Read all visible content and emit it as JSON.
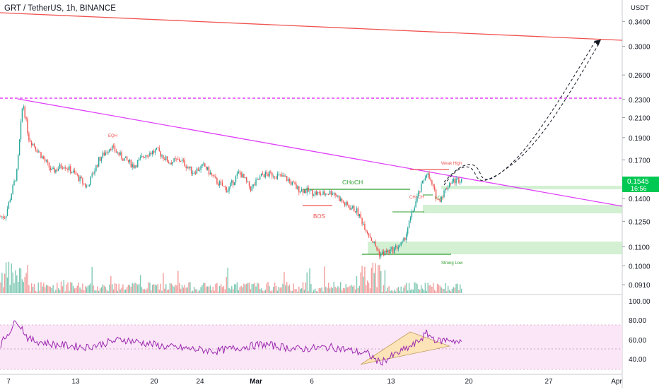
{
  "header": {
    "title": "GRT / TetherUS, 1h, BINANCE"
  },
  "colors": {
    "up": "#26a69a",
    "down": "#ef5350",
    "resistance": "#ef5350",
    "trendline": "#e040fb",
    "accent_green": "#00c853",
    "structure_green": "#2e9e2e",
    "rsi_line": "#9c27b0",
    "rsi_band": "#fbe6f7",
    "wedge_fill": "#fde3b8"
  },
  "price_axis": {
    "unit": "USDT",
    "ticks": [
      "0.3400",
      "0.3000",
      "0.2600",
      "0.2300",
      "0.2100",
      "0.1900",
      "0.1700",
      "0.1400",
      "0.1250",
      "0.1100",
      "0.1000",
      "0.0910"
    ],
    "current_price": "0.1545",
    "countdown": "16:56"
  },
  "rsi_axis": {
    "ticks": [
      "100.00",
      "80.00",
      "60.00",
      "40.00"
    ]
  },
  "time_axis": {
    "ticks": [
      "7",
      "13",
      "20",
      "24",
      "Mar",
      "6",
      "13",
      "20",
      "27",
      "Apr"
    ]
  },
  "annotations": {
    "eqh": "EQH",
    "choch_main": "CHoCH",
    "bos": "BOS",
    "weak_high": "Weak High",
    "choch_small": "CHoCH",
    "eql": "EQL",
    "strong_low": "Strong Low"
  },
  "chart_data": [
    {
      "type": "line",
      "title": "GRT / TetherUS, 1h, BINANCE",
      "ylabel": "USDT",
      "x_domain": [
        "Feb 6",
        "Apr 2"
      ],
      "y_scale": "log",
      "ylim": [
        0.087,
        0.38
      ],
      "series": [
        {
          "values_x": [
            "Feb 6",
            "Feb 7",
            "Feb 7.5",
            "Feb 8",
            "Feb 9",
            "Feb 10",
            "Feb 11",
            "Feb 12",
            "Feb 13",
            "Feb 14",
            "Feb 15",
            "Feb 16",
            "Feb 17",
            "Feb 18",
            "Feb 19",
            "Feb 20",
            "Feb 21",
            "Feb 22",
            "Feb 23",
            "Feb 24",
            "Feb 25",
            "Feb 26",
            "Feb 27",
            "Feb 28",
            "Mar 1",
            "Mar 2",
            "Mar 3",
            "Mar 4",
            "Mar 5",
            "Mar 6",
            "Mar 7",
            "Mar 8",
            "Mar 9",
            "Mar 10",
            "Mar 11",
            "Mar 12",
            "Mar 13",
            "Mar 14",
            "Mar 15",
            "Mar 16",
            "Mar 17"
          ],
          "values": [
            0.128,
            0.16,
            0.228,
            0.19,
            0.175,
            0.16,
            0.166,
            0.158,
            0.148,
            0.17,
            0.182,
            0.172,
            0.165,
            0.175,
            0.178,
            0.168,
            0.17,
            0.16,
            0.165,
            0.153,
            0.146,
            0.16,
            0.147,
            0.158,
            0.158,
            0.155,
            0.147,
            0.145,
            0.143,
            0.145,
            0.136,
            0.132,
            0.118,
            0.106,
            0.108,
            0.112,
            0.136,
            0.16,
            0.138,
            0.152,
            0.155
          ]
        }
      ],
      "levels": {
        "resistance_dashed": 0.2315,
        "bos": 0.1385,
        "choch": 0.1465,
        "weak_high": 0.163,
        "strong_low": 0.1055
      }
    },
    {
      "type": "line",
      "title": "",
      "ylim": [
        30,
        100
      ],
      "band": [
        30,
        70
      ],
      "series": [
        {
          "values_x": [
            "Feb 6",
            "Feb 7",
            "Feb 8",
            "Feb 10",
            "Feb 13",
            "Feb 16",
            "Feb 20",
            "Feb 24",
            "Feb 28",
            "Mar 3",
            "Mar 6",
            "Mar 9",
            "Mar 10",
            "Mar 13",
            "Mar 14",
            "Mar 15",
            "Mar 16",
            "Mar 17"
          ],
          "values": [
            62,
            80,
            60,
            55,
            52,
            60,
            52,
            48,
            55,
            50,
            52,
            45,
            36,
            55,
            66,
            58,
            60,
            56
          ]
        }
      ]
    }
  ]
}
